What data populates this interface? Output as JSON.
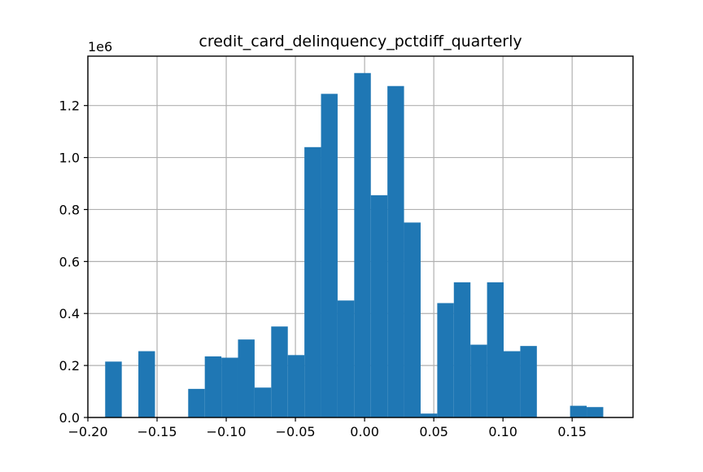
{
  "colors": {
    "bar": "#1f77b4",
    "background": "#ffffff",
    "grid": "#b0b0b0"
  },
  "chart_data": {
    "type": "bar",
    "title": "credit_card_delinquency_pctdiff_quarterly",
    "xlabel": "",
    "ylabel": "",
    "y_offset_label": "1e6",
    "grid": true,
    "xlim": [
      -0.2,
      0.194
    ],
    "ylim": [
      0,
      1.39
    ],
    "xticks": [
      -0.2,
      -0.15,
      -0.1,
      -0.05,
      0.0,
      0.05,
      0.1,
      0.15
    ],
    "xtick_labels": [
      "−0.20",
      "−0.15",
      "−0.10",
      "−0.05",
      "0.00",
      "0.05",
      "0.10",
      "0.15"
    ],
    "yticks": [
      0.0,
      0.2,
      0.4,
      0.6,
      0.8,
      1.0,
      1.2
    ],
    "ytick_labels": [
      "0.0",
      "0.2",
      "0.4",
      "0.6",
      "0.8",
      "1.0",
      "1.2"
    ],
    "bins": [
      {
        "x0": -0.1875,
        "x1": -0.1755,
        "value": 0.215
      },
      {
        "x0": -0.1755,
        "x1": -0.1635,
        "value": 0.0
      },
      {
        "x0": -0.1635,
        "x1": -0.1515,
        "value": 0.255
      },
      {
        "x0": -0.1515,
        "x1": -0.1395,
        "value": 0.0
      },
      {
        "x0": -0.1395,
        "x1": -0.1275,
        "value": 0.0
      },
      {
        "x0": -0.1275,
        "x1": -0.1155,
        "value": 0.11
      },
      {
        "x0": -0.1155,
        "x1": -0.1035,
        "value": 0.235
      },
      {
        "x0": -0.1035,
        "x1": -0.0915,
        "value": 0.23
      },
      {
        "x0": -0.0915,
        "x1": -0.0795,
        "value": 0.3
      },
      {
        "x0": -0.0795,
        "x1": -0.0675,
        "value": 0.115
      },
      {
        "x0": -0.0675,
        "x1": -0.0555,
        "value": 0.35
      },
      {
        "x0": -0.0555,
        "x1": -0.0435,
        "value": 0.24
      },
      {
        "x0": -0.0435,
        "x1": -0.0315,
        "value": 1.04
      },
      {
        "x0": -0.0315,
        "x1": -0.0195,
        "value": 1.245
      },
      {
        "x0": -0.0195,
        "x1": -0.0075,
        "value": 0.45
      },
      {
        "x0": -0.0075,
        "x1": 0.0045,
        "value": 1.325
      },
      {
        "x0": 0.0045,
        "x1": 0.0165,
        "value": 0.855
      },
      {
        "x0": 0.0165,
        "x1": 0.0285,
        "value": 1.275
      },
      {
        "x0": 0.0285,
        "x1": 0.0405,
        "value": 0.75
      },
      {
        "x0": 0.0405,
        "x1": 0.0525,
        "value": 0.015
      },
      {
        "x0": 0.0525,
        "x1": 0.0645,
        "value": 0.44
      },
      {
        "x0": 0.0645,
        "x1": 0.0765,
        "value": 0.52
      },
      {
        "x0": 0.0765,
        "x1": 0.0885,
        "value": 0.28
      },
      {
        "x0": 0.0885,
        "x1": 0.1005,
        "value": 0.52
      },
      {
        "x0": 0.1005,
        "x1": 0.1125,
        "value": 0.255
      },
      {
        "x0": 0.1125,
        "x1": 0.1245,
        "value": 0.275
      },
      {
        "x0": 0.1245,
        "x1": 0.1365,
        "value": 0.0
      },
      {
        "x0": 0.1365,
        "x1": 0.1485,
        "value": 0.0
      },
      {
        "x0": 0.1485,
        "x1": 0.1605,
        "value": 0.045
      },
      {
        "x0": 0.1605,
        "x1": 0.1725,
        "value": 0.04
      }
    ]
  }
}
